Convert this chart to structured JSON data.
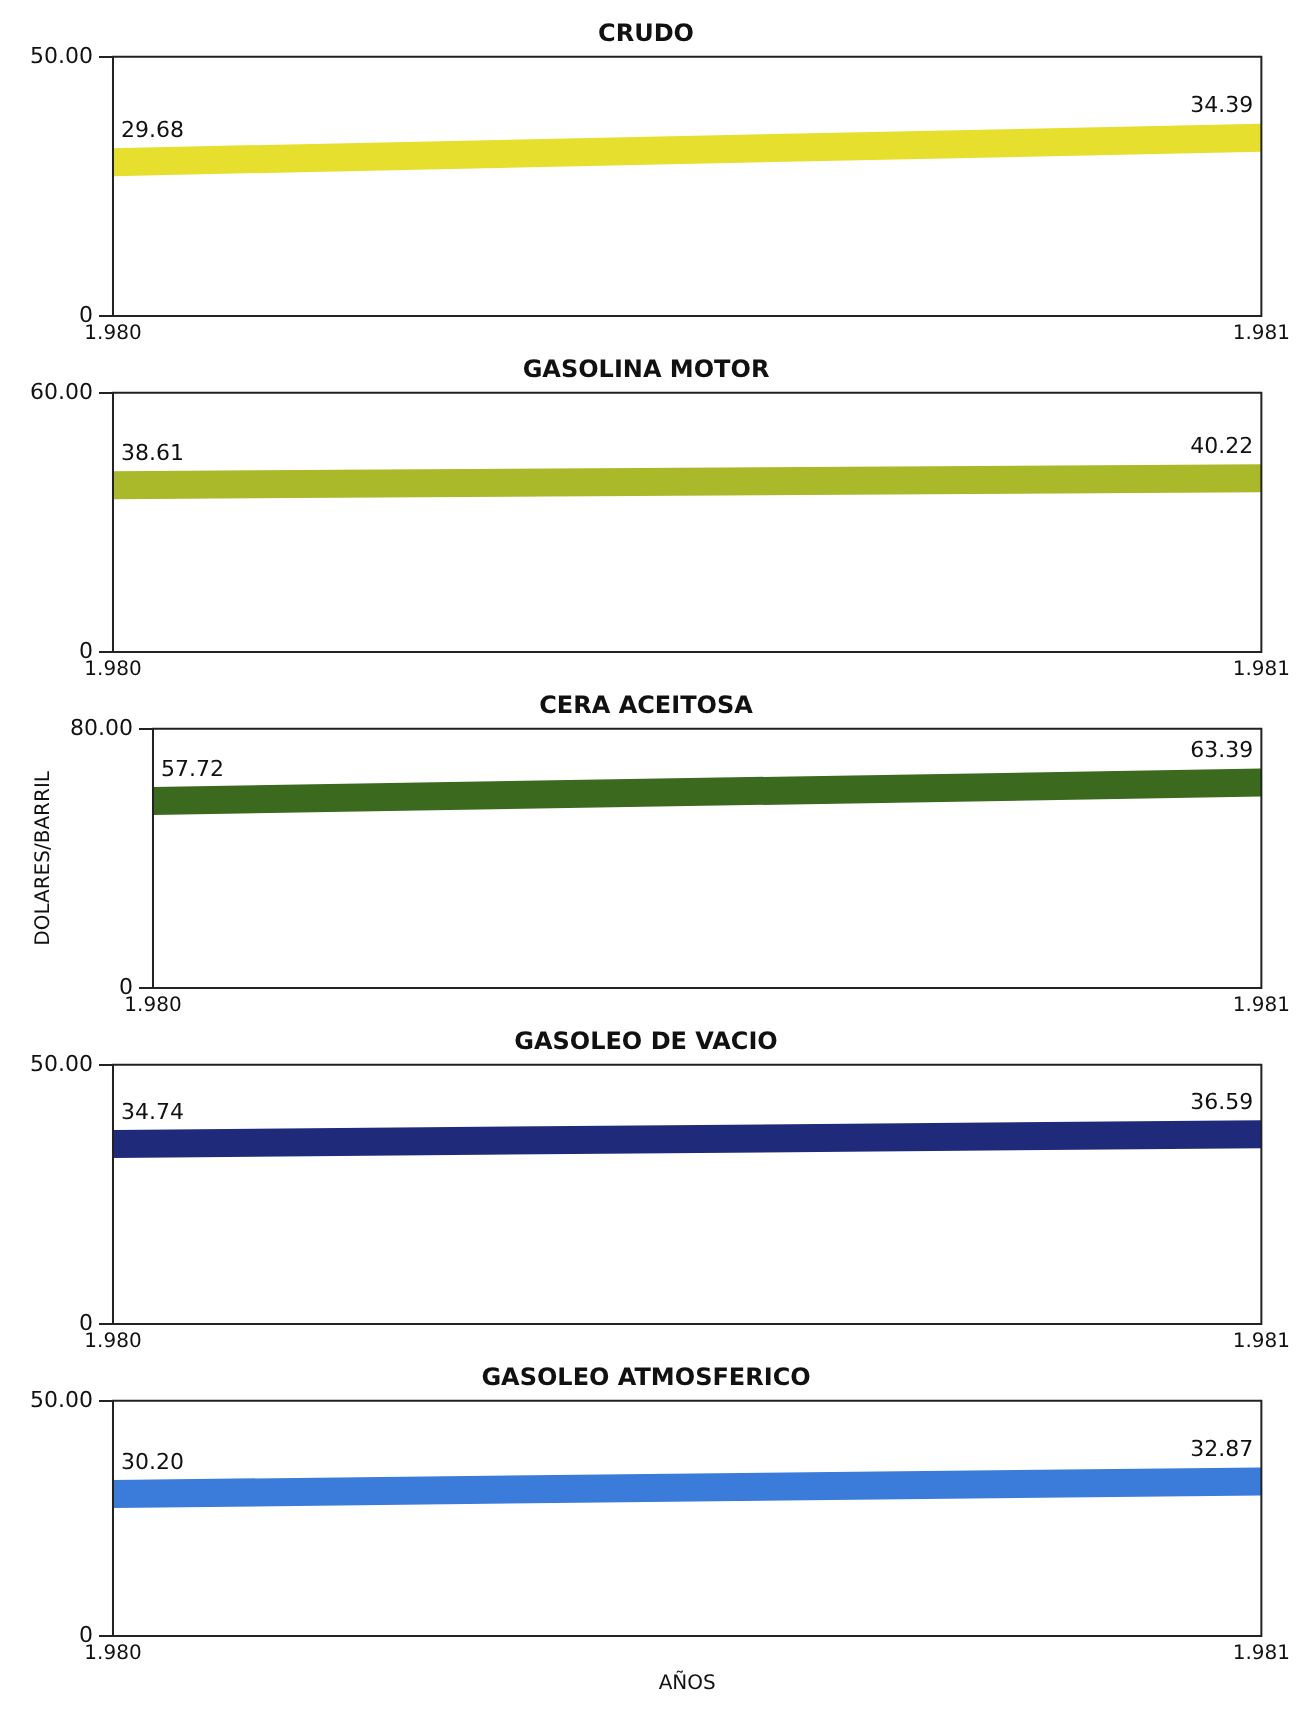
{
  "chart_data": [
    {
      "type": "line",
      "title": "CRUDO",
      "categories": [
        "1.980",
        "1.981"
      ],
      "series": [
        {
          "color": "#e6df2e",
          "values": [
            29.68,
            34.39
          ],
          "value_labels": [
            "29.68",
            "34.39"
          ]
        }
      ],
      "ylim": [
        0,
        50
      ],
      "yticks": [
        {
          "value": 0,
          "label": "0"
        },
        {
          "value": 50,
          "label": "50.00"
        }
      ],
      "grid": false,
      "legend": false
    },
    {
      "type": "line",
      "title": "GASOLINA MOTOR",
      "categories": [
        "1.980",
        "1.981"
      ],
      "series": [
        {
          "color": "#a9b92a",
          "values": [
            38.61,
            40.22
          ],
          "value_labels": [
            "38.61",
            "40.22"
          ]
        }
      ],
      "ylim": [
        0,
        60
      ],
      "yticks": [
        {
          "value": 0,
          "label": "0"
        },
        {
          "value": 60,
          "label": "60.00"
        }
      ],
      "grid": false,
      "legend": false
    },
    {
      "type": "line",
      "title": "CERA ACEITOSA",
      "ylabel": "DOLARES/BARRIL",
      "categories": [
        "1.980",
        "1.981"
      ],
      "series": [
        {
          "color": "#3b6a1f",
          "values": [
            57.72,
            63.39
          ],
          "value_labels": [
            "57.72",
            "63.39"
          ]
        }
      ],
      "ylim": [
        0,
        80
      ],
      "yticks": [
        {
          "value": 0,
          "label": "0"
        },
        {
          "value": 80,
          "label": "80.00"
        }
      ],
      "grid": false,
      "legend": false
    },
    {
      "type": "line",
      "title": "GASOLEO DE VACIO",
      "categories": [
        "1.980",
        "1.981"
      ],
      "series": [
        {
          "color": "#1f2a7a",
          "values": [
            34.74,
            36.59
          ],
          "value_labels": [
            "34.74",
            "36.59"
          ]
        }
      ],
      "ylim": [
        0,
        50
      ],
      "yticks": [
        {
          "value": 0,
          "label": "0"
        },
        {
          "value": 50,
          "label": "50.00"
        }
      ],
      "grid": false,
      "legend": false
    },
    {
      "type": "line",
      "title": "GASOLEO ATMOSFERICO",
      "xlabel": "AÑOS",
      "categories": [
        "1.980",
        "1.981"
      ],
      "series": [
        {
          "color": "#3b7bd9",
          "values": [
            30.2,
            32.87
          ],
          "value_labels": [
            "30.20",
            "32.87"
          ]
        }
      ],
      "ylim": [
        0,
        50
      ],
      "yticks": [
        {
          "value": 0,
          "label": "0"
        },
        {
          "value": 50,
          "label": "50.00"
        }
      ],
      "grid": false,
      "legend": false
    }
  ]
}
